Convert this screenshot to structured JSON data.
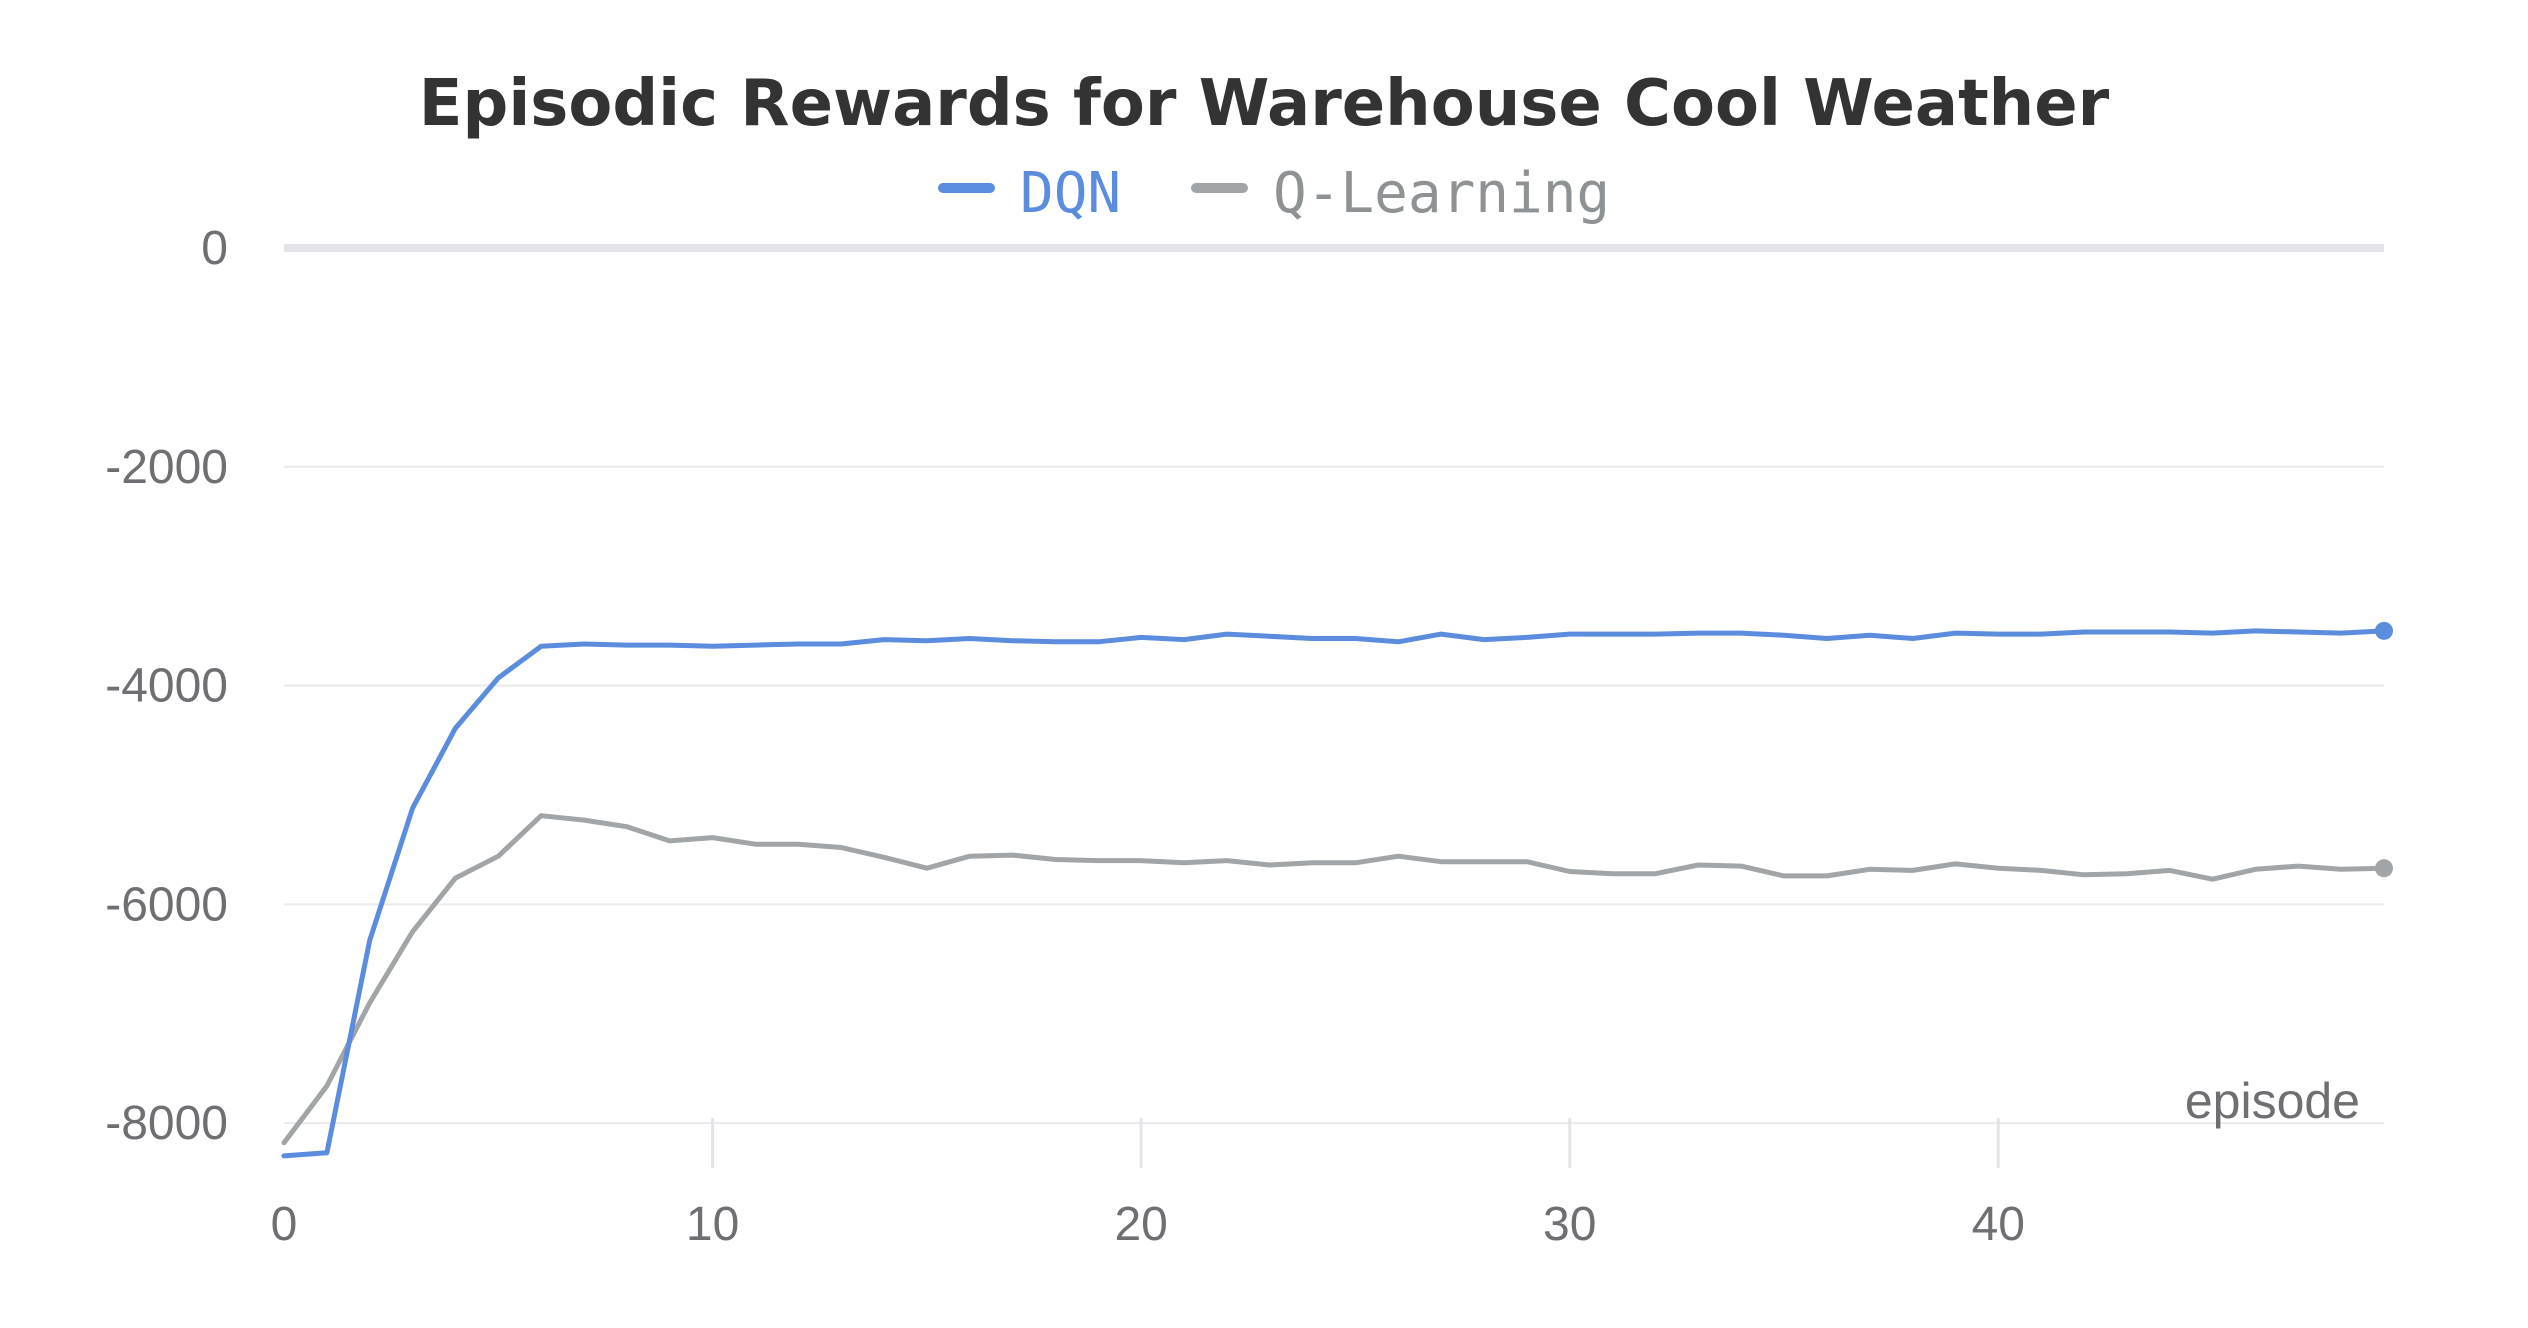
{
  "chart_data": {
    "type": "line",
    "title": "Episodic Rewards for Warehouse Cool Weather",
    "xlabel": "episode",
    "ylabel": "",
    "xlim": [
      0,
      49
    ],
    "ylim": [
      -8200,
      0
    ],
    "x_ticks": [
      0,
      10,
      20,
      30,
      40
    ],
    "y_ticks": [
      0,
      -2000,
      -4000,
      -6000,
      -8000
    ],
    "x_tick_labels": [
      "0",
      "10",
      "20",
      "30",
      "40"
    ],
    "y_tick_labels": [
      "0",
      "-2000",
      "-4000",
      "-6000",
      "-8000"
    ],
    "legend_position": "top-center",
    "x": [
      0,
      1,
      2,
      3,
      4,
      5,
      6,
      7,
      8,
      9,
      10,
      11,
      12,
      13,
      14,
      15,
      16,
      17,
      18,
      19,
      20,
      21,
      22,
      23,
      24,
      25,
      26,
      27,
      28,
      29,
      30,
      31,
      32,
      33,
      34,
      35,
      36,
      37,
      38,
      39,
      40,
      41,
      42,
      43,
      44,
      45,
      46,
      47,
      48,
      49
    ],
    "series": [
      {
        "name": "DQN",
        "color": "#5b8cde",
        "values": [
          -8300,
          -8270,
          -6330,
          -5120,
          -4390,
          -3930,
          -3640,
          -3620,
          -3630,
          -3630,
          -3640,
          -3630,
          -3620,
          -3620,
          -3580,
          -3590,
          -3570,
          -3590,
          -3600,
          -3600,
          -3560,
          -3580,
          -3530,
          -3550,
          -3570,
          -3570,
          -3600,
          -3530,
          -3580,
          -3560,
          -3530,
          -3530,
          -3530,
          -3520,
          -3520,
          -3540,
          -3570,
          -3540,
          -3570,
          -3520,
          -3530,
          -3530,
          -3510,
          -3510,
          -3510,
          -3520,
          -3500,
          -3510,
          -3520,
          -3500
        ]
      },
      {
        "name": "Q-Learning",
        "color": "#a1a5a7",
        "values": [
          -8180,
          -7660,
          -6900,
          -6250,
          -5760,
          -5560,
          -5190,
          -5230,
          -5290,
          -5420,
          -5390,
          -5450,
          -5450,
          -5480,
          -5570,
          -5670,
          -5560,
          -5550,
          -5590,
          -5600,
          -5600,
          -5620,
          -5600,
          -5640,
          -5620,
          -5620,
          -5560,
          -5610,
          -5610,
          -5610,
          -5700,
          -5720,
          -5720,
          -5640,
          -5650,
          -5740,
          -5740,
          -5680,
          -5690,
          -5630,
          -5670,
          -5690,
          -5730,
          -5720,
          -5690,
          -5770,
          -5680,
          -5650,
          -5680,
          -5670
        ]
      }
    ]
  }
}
